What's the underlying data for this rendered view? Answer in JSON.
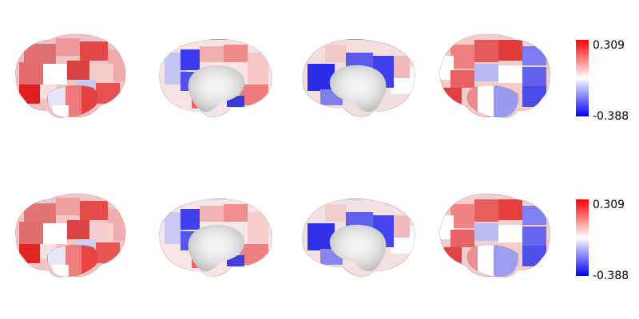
{
  "colorbar": {
    "max_label": "0.309",
    "min_label": "-0.388",
    "max_value": 0.309,
    "min_value": -0.388,
    "colormap": "bwr",
    "colors": {
      "high": "#ff0000",
      "mid": "#ffffff",
      "low": "#0000ff"
    }
  },
  "brain_rows": [
    {
      "row": 1,
      "views": [
        "left-lateral",
        "left-medial",
        "right-medial",
        "right-lateral"
      ]
    },
    {
      "row": 2,
      "views": [
        "left-lateral",
        "left-medial",
        "right-medial",
        "right-lateral"
      ]
    }
  ]
}
